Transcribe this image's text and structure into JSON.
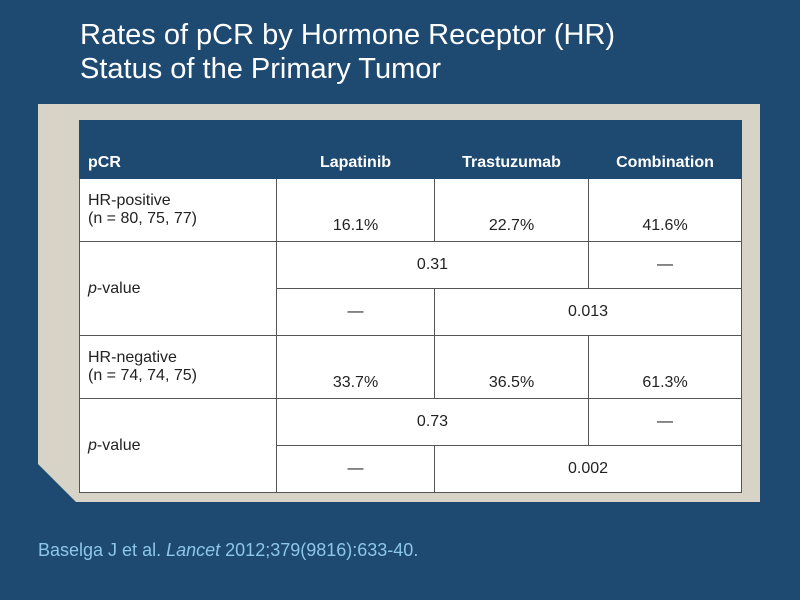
{
  "title": {
    "line1": "Rates of pCR by Hormone Receptor (HR)",
    "line2": "Status of the Primary Tumor"
  },
  "table": {
    "headers": [
      "pCR",
      "Lapatinib",
      "Trastuzumab",
      "Combination"
    ],
    "groups": [
      {
        "label_line1": "HR-positive",
        "label_line2": "(n = 80, 75, 77)",
        "values": [
          "16.1%",
          "22.7%",
          "41.6%"
        ],
        "pvalue_label_prefix": "p",
        "pvalue_label_suffix": "-value",
        "p_lap_vs_tras": "0.31",
        "p_combination_dash": "—",
        "p_lapatinib_dash": "—",
        "p_tras_vs_comb": "0.013"
      },
      {
        "label_line1": "HR-negative",
        "label_line2": "(n = 74, 74, 75)",
        "values": [
          "33.7%",
          "36.5%",
          "61.3%"
        ],
        "pvalue_label_prefix": "p",
        "pvalue_label_suffix": "-value",
        "p_lap_vs_tras": "0.73",
        "p_combination_dash": "—",
        "p_lapatinib_dash": "—",
        "p_tras_vs_comb": "0.002"
      }
    ]
  },
  "citation": {
    "authors": "Baselga J et al.",
    "journal": "Lancet",
    "details": "2012;379(9816):633-40."
  },
  "colors": {
    "background": "#1e4a72",
    "panel": "#d8d3c7",
    "header_fill": "#1e4a72",
    "citation": "#8cc6e8"
  }
}
